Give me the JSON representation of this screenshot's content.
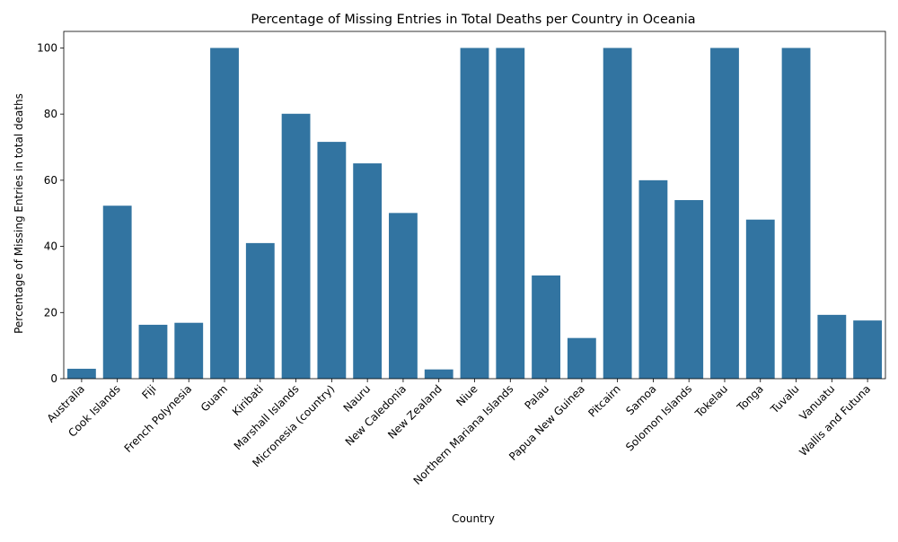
{
  "chart_data": {
    "type": "bar",
    "title": "Percentage of Missing Entries in Total Deaths per Country in Oceania",
    "xlabel": "Country",
    "ylabel": "Percentage of Missing Entries in total deaths",
    "ylim": [
      0,
      105
    ],
    "yticks": [
      0,
      20,
      40,
      60,
      80,
      100
    ],
    "grid": false,
    "legend": "none",
    "bar_color": "#3274a1",
    "categories": [
      "Australia",
      "Cook Islands",
      "Fiji",
      "French Polynesia",
      "Guam",
      "Kiribati",
      "Marshall Islands",
      "Micronesia (country)",
      "Nauru",
      "New Caledonia",
      "New Zealand",
      "Niue",
      "Northern Mariana Islands",
      "Palau",
      "Papua New Guinea",
      "Pitcairn",
      "Samoa",
      "Solomon Islands",
      "Tokelau",
      "Tonga",
      "Tuvalu",
      "Vanuatu",
      "Wallis and Futuna"
    ],
    "values": [
      3.0,
      52.3,
      16.3,
      16.9,
      100,
      41.0,
      80.1,
      71.6,
      65.1,
      50.1,
      2.8,
      100,
      100,
      31.2,
      12.3,
      100,
      60.0,
      54.0,
      100,
      48.1,
      100,
      19.3,
      17.6
    ]
  }
}
